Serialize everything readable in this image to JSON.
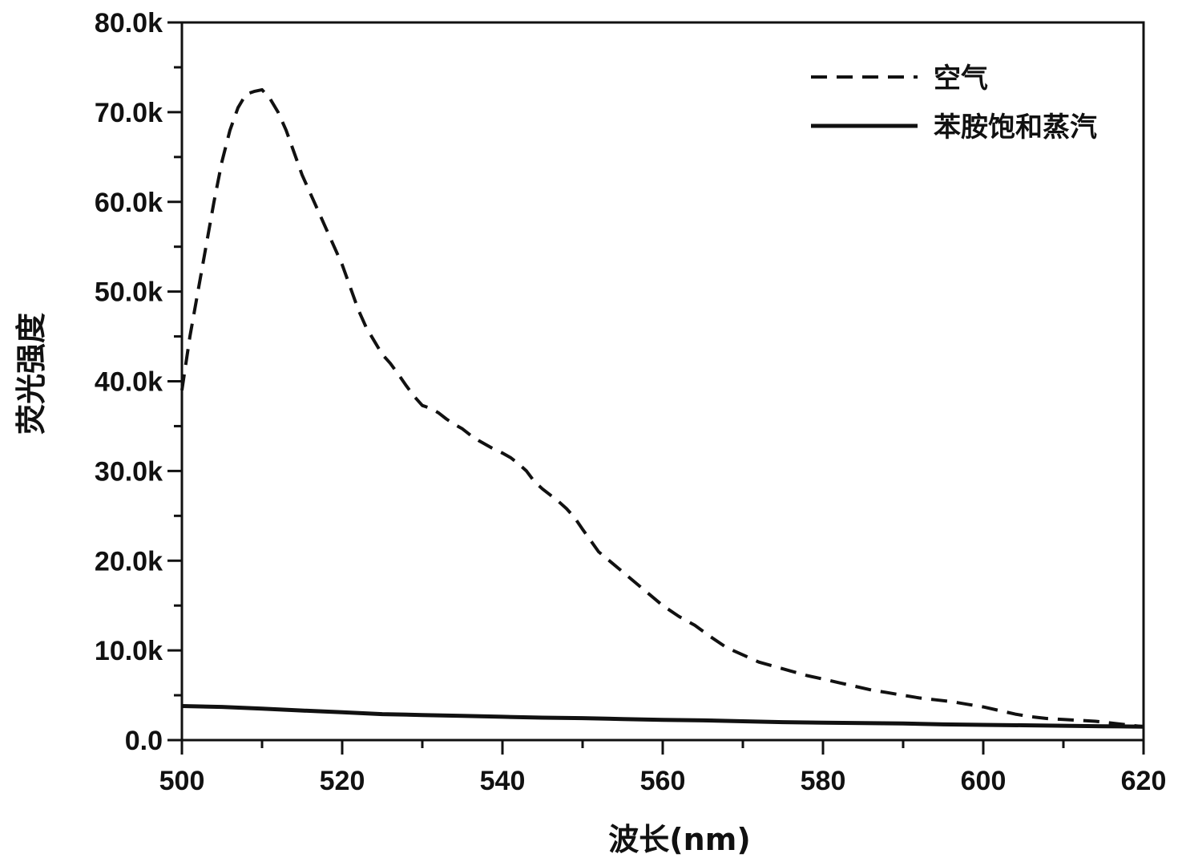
{
  "chart_data": {
    "type": "line",
    "title": "",
    "xlabel": "波长(nm)",
    "ylabel": "荧光强度",
    "xlim": [
      500,
      620
    ],
    "ylim": [
      0,
      80000
    ],
    "x_ticks": [
      500,
      520,
      540,
      560,
      580,
      600,
      620
    ],
    "x_tick_labels": [
      "500",
      "520",
      "540",
      "560",
      "580",
      "600",
      "620"
    ],
    "y_ticks": [
      0,
      10000,
      20000,
      30000,
      40000,
      50000,
      60000,
      70000,
      80000
    ],
    "y_tick_labels": [
      "0.0",
      "10.0k",
      "20.0k",
      "30.0k",
      "40.0k",
      "50.0k",
      "60.0k",
      "70.0k",
      "80.0k"
    ],
    "grid": false,
    "legend_position": "top-right",
    "series": [
      {
        "name": "空气",
        "style": "dashed",
        "color": "#111111",
        "x": [
          500,
          501,
          502,
          503,
          504,
          505,
          506,
          507,
          508,
          509,
          510,
          511,
          512,
          513,
          514,
          515,
          516,
          517,
          518,
          519,
          520,
          521,
          522,
          523,
          524,
          525,
          526,
          527,
          528,
          529,
          530,
          531,
          532,
          533,
          534,
          535,
          536,
          537,
          538,
          539,
          540,
          541,
          542,
          543,
          544,
          545,
          546,
          547,
          548,
          549,
          550,
          552,
          554,
          556,
          558,
          560,
          562,
          564,
          566,
          568,
          570,
          572,
          574,
          576,
          578,
          580,
          582,
          584,
          586,
          588,
          590,
          592,
          594,
          596,
          598,
          600,
          602,
          604,
          606,
          608,
          610,
          612,
          614,
          616,
          618,
          620
        ],
        "y": [
          39000,
          45000,
          50000,
          55000,
          60000,
          64500,
          68000,
          70500,
          72000,
          72300,
          72500,
          71500,
          70000,
          68000,
          65500,
          63000,
          61000,
          59000,
          57000,
          55000,
          53000,
          50500,
          48000,
          46000,
          44500,
          43000,
          42000,
          40800,
          39500,
          38300,
          37300,
          37000,
          36500,
          35800,
          35200,
          34700,
          34000,
          33400,
          32900,
          32400,
          32000,
          31500,
          30800,
          30000,
          28800,
          28000,
          27300,
          26600,
          25800,
          24800,
          23500,
          21000,
          19500,
          18000,
          16500,
          15000,
          13800,
          12800,
          11500,
          10300,
          9500,
          8700,
          8200,
          7700,
          7200,
          6800,
          6400,
          6000,
          5600,
          5300,
          5000,
          4700,
          4500,
          4300,
          4000,
          3700,
          3300,
          2900,
          2600,
          2400,
          2300,
          2200,
          2100,
          1900,
          1700,
          1500
        ]
      },
      {
        "name": "苯胺饱和蒸汽",
        "style": "solid",
        "color": "#111111",
        "x": [
          500,
          505,
          510,
          515,
          520,
          525,
          530,
          535,
          540,
          545,
          550,
          555,
          560,
          565,
          570,
          575,
          580,
          585,
          590,
          595,
          600,
          605,
          610,
          615,
          620
        ],
        "y": [
          3800,
          3700,
          3500,
          3300,
          3100,
          2900,
          2800,
          2700,
          2600,
          2500,
          2450,
          2350,
          2250,
          2200,
          2100,
          2000,
          1950,
          1900,
          1850,
          1750,
          1700,
          1650,
          1600,
          1550,
          1500
        ]
      }
    ]
  }
}
